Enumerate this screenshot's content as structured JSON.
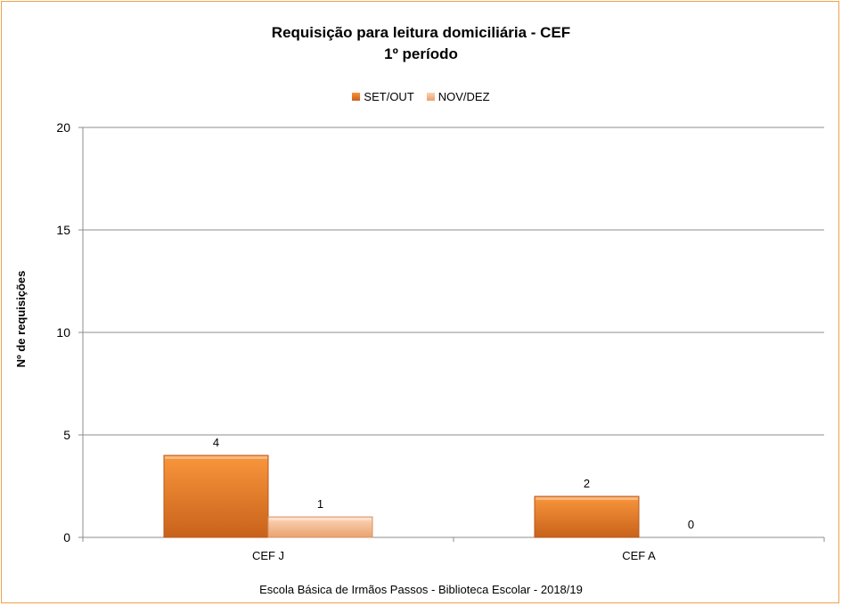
{
  "chart_data": {
    "type": "bar",
    "title": "Requisição para leitura domiciliária - CEF",
    "subtitle": "1º período",
    "xlabel": "",
    "ylabel": "Nº de requisições",
    "categories": [
      "CEF J",
      "CEF A"
    ],
    "series": [
      {
        "name": "SET/OUT",
        "values": [
          4,
          2
        ],
        "color": "#e8741c"
      },
      {
        "name": "NOV/DEZ",
        "values": [
          1,
          0
        ],
        "color": "#f5b98b"
      }
    ],
    "ylim": [
      0,
      20
    ],
    "yticks": [
      0,
      5,
      10,
      15,
      20
    ],
    "grid": true,
    "legend": "top",
    "data_labels": true
  },
  "footer": "Escola Básica de Irmãos Passos - Biblioteca Escolar  - 2018/19",
  "colors": {
    "border": "#f0a04b",
    "gridline": "#8c8c8c"
  }
}
